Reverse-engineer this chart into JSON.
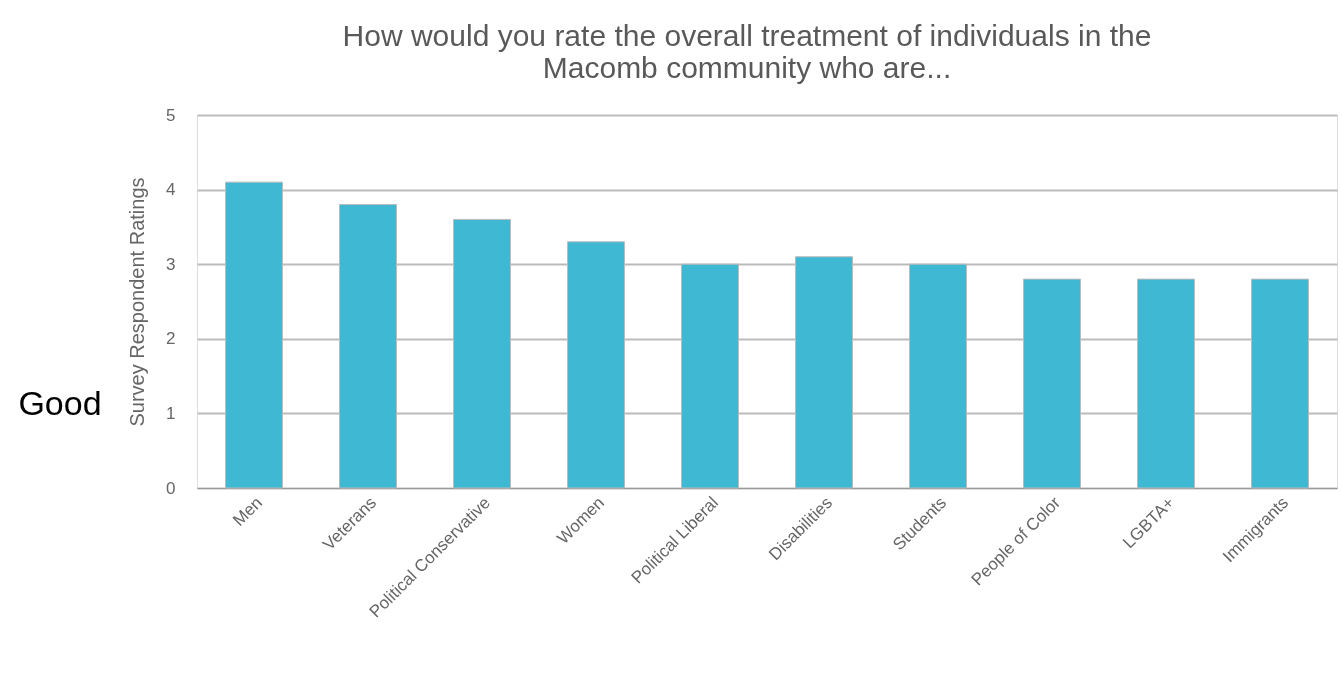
{
  "chart_data": {
    "type": "bar",
    "title": "How would you rate the overall treatment of individuals in the Macomb community who are...",
    "ylabel": "Survey Respondent Ratings",
    "categories": [
      "Men",
      "Veterans",
      "Political Conservative",
      "Women",
      "Political Liberal",
      "Disabilities",
      "Students",
      "People of Color",
      "LGBTA+",
      "Immigrants"
    ],
    "values": [
      4.1,
      3.8,
      3.6,
      3.3,
      3.0,
      3.1,
      3.0,
      2.8,
      2.8,
      2.8
    ],
    "color": "#3eb8d3",
    "ylim": [
      0,
      5
    ],
    "yticks": [
      0,
      1,
      2,
      3,
      4,
      5
    ],
    "grid": "y",
    "annotations": [
      "Good"
    ]
  }
}
